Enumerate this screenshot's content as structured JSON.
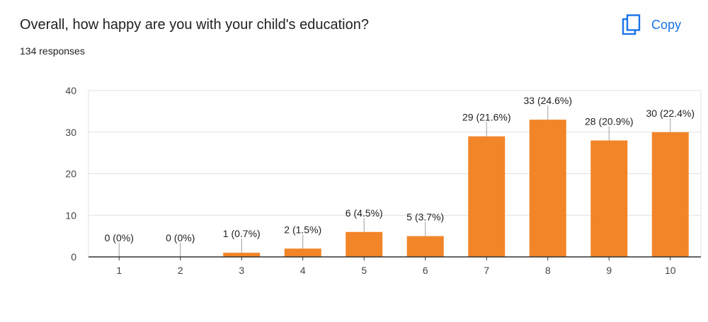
{
  "question": {
    "title": "Overall, how happy are you with your child's education?",
    "responses": "134 responses"
  },
  "toolbar": {
    "copy_label": "Copy",
    "copy_icon": "copy-icon",
    "accent_color": "#1a73e8"
  },
  "chart_data": {
    "type": "bar",
    "categories": [
      "1",
      "2",
      "3",
      "4",
      "5",
      "6",
      "7",
      "8",
      "9",
      "10"
    ],
    "values": [
      0,
      0,
      1,
      2,
      6,
      5,
      29,
      33,
      28,
      30
    ],
    "data_labels": [
      "0 (0%)",
      "0 (0%)",
      "1 (0.7%)",
      "2 (1.5%)",
      "6 (4.5%)",
      "5 (3.7%)",
      "29 (21.6%)",
      "33 (24.6%)",
      "28 (20.9%)",
      "30 (22.4%)"
    ],
    "ylim": [
      0,
      40
    ],
    "yticks": [
      0,
      10,
      20,
      30,
      40
    ],
    "grid": true,
    "bar_color": "#f18527",
    "title": "",
    "xlabel": "",
    "ylabel": ""
  }
}
